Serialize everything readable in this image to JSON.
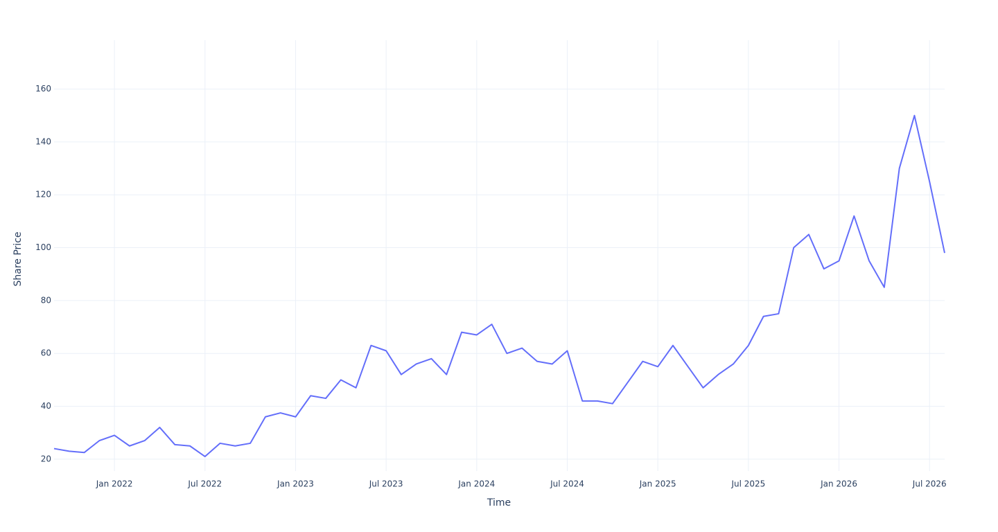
{
  "chart_data": {
    "type": "line",
    "x_label": "Time",
    "y_label": "Share Price",
    "x": [
      "2021-09",
      "2021-10",
      "2021-11",
      "2021-12",
      "2022-01",
      "2022-02",
      "2022-03",
      "2022-04",
      "2022-05",
      "2022-06",
      "2022-07",
      "2022-08",
      "2022-09",
      "2022-10",
      "2022-11",
      "2022-12",
      "2023-01",
      "2023-02",
      "2023-03",
      "2023-04",
      "2023-05",
      "2023-06",
      "2023-07",
      "2023-08",
      "2023-09",
      "2023-10",
      "2023-11",
      "2023-12",
      "2024-01",
      "2024-02",
      "2024-03",
      "2024-04",
      "2024-05",
      "2024-06",
      "2024-07",
      "2024-08",
      "2024-09",
      "2024-10",
      "2024-11",
      "2024-12",
      "2025-01",
      "2025-02",
      "2025-03",
      "2025-04",
      "2025-05",
      "2025-06",
      "2025-07",
      "2025-08",
      "2025-09",
      "2025-10",
      "2025-11",
      "2025-12",
      "2026-01",
      "2026-02",
      "2026-03",
      "2026-04",
      "2026-05",
      "2026-06",
      "2026-07",
      "2026-08"
    ],
    "series": [
      {
        "color": "#636efa",
        "values": [
          24,
          23,
          22.5,
          27,
          29,
          25,
          27,
          32,
          25.5,
          25,
          21,
          26,
          25,
          26,
          36,
          37.5,
          36,
          44,
          43,
          50,
          47,
          63,
          61,
          52,
          56,
          58,
          52,
          68,
          67,
          71,
          60,
          62,
          57,
          56,
          61,
          42,
          42,
          41,
          49,
          57,
          55,
          63,
          55,
          47,
          52,
          56,
          63,
          74,
          75,
          100,
          105,
          92,
          95,
          112,
          95,
          85,
          130,
          150,
          125,
          98
        ]
      }
    ],
    "xlim": [
      "2021-09",
      "2026-08"
    ],
    "xticks": [
      {
        "value": "2022-01",
        "label": "Jan 2022"
      },
      {
        "value": "2022-07",
        "label": "Jul 2022"
      },
      {
        "value": "2023-01",
        "label": "Jan 2023"
      },
      {
        "value": "2023-07",
        "label": "Jul 2023"
      },
      {
        "value": "2024-01",
        "label": "Jan 2024"
      },
      {
        "value": "2024-07",
        "label": "Jul 2024"
      },
      {
        "value": "2025-01",
        "label": "Jan 2025"
      },
      {
        "value": "2025-07",
        "label": "Jul 2025"
      },
      {
        "value": "2026-01",
        "label": "Jan 2026"
      },
      {
        "value": "2026-07",
        "label": "Jul 2026"
      }
    ],
    "ylim": [
      15.5,
      178.5
    ],
    "yticks": [
      20,
      40,
      60,
      80,
      100,
      120,
      140,
      160
    ],
    "grid": true
  }
}
